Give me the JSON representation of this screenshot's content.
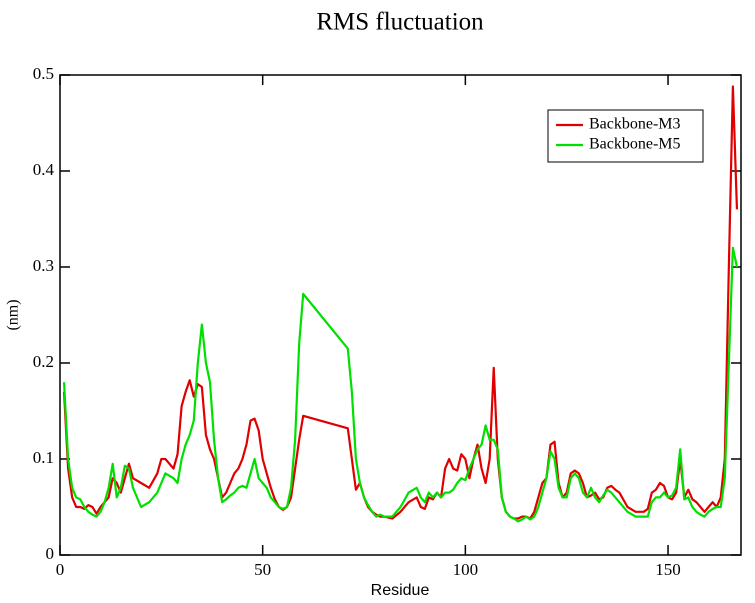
{
  "chart_data": {
    "type": "line",
    "title": "RMS fluctuation",
    "x_label": "Residue",
    "y_label": "(nm)",
    "x": [
      1,
      2,
      3,
      4,
      5,
      6,
      7,
      8,
      9,
      10,
      11,
      12,
      13,
      14,
      15,
      16,
      17,
      18,
      20,
      22,
      24,
      25,
      26,
      28,
      29,
      30,
      31,
      32,
      33,
      34,
      35,
      36,
      37,
      38,
      39,
      40,
      41,
      42,
      43,
      44,
      45,
      46,
      47,
      48,
      49,
      50,
      51,
      52,
      53,
      54,
      55,
      56,
      57,
      58,
      59,
      60,
      71,
      72,
      73,
      74,
      75,
      76,
      77,
      78,
      79,
      80,
      82,
      84,
      86,
      88,
      89,
      90,
      91,
      92,
      93,
      94,
      95,
      96,
      97,
      98,
      99,
      100,
      101,
      102,
      103,
      104,
      105,
      106,
      107,
      108,
      109,
      110,
      111,
      112,
      113,
      114,
      115,
      116,
      117,
      118,
      119,
      120,
      121,
      122,
      123,
      124,
      125,
      126,
      127,
      128,
      129,
      130,
      131,
      132,
      133,
      134,
      135,
      136,
      137,
      138,
      140,
      142,
      144,
      145,
      146,
      147,
      148,
      149,
      150,
      151,
      152,
      153,
      154,
      155,
      156,
      157,
      158,
      159,
      160,
      161,
      162,
      163,
      164,
      165,
      166,
      167
    ],
    "series": [
      {
        "name": "Backbone-M3",
        "color": "#e00000",
        "values": [
          0.17,
          0.09,
          0.06,
          0.05,
          0.05,
          0.048,
          0.052,
          0.05,
          0.043,
          0.05,
          0.055,
          0.06,
          0.08,
          0.075,
          0.065,
          0.08,
          0.095,
          0.08,
          0.075,
          0.07,
          0.085,
          0.1,
          0.1,
          0.09,
          0.105,
          0.155,
          0.17,
          0.182,
          0.165,
          0.178,
          0.175,
          0.125,
          0.11,
          0.1,
          0.08,
          0.06,
          0.065,
          0.075,
          0.085,
          0.09,
          0.1,
          0.115,
          0.14,
          0.142,
          0.13,
          0.1,
          0.085,
          0.07,
          0.058,
          0.05,
          0.047,
          0.05,
          0.06,
          0.09,
          0.12,
          0.145,
          0.132,
          0.1,
          0.068,
          0.075,
          0.06,
          0.05,
          0.045,
          0.042,
          0.04,
          0.04,
          0.038,
          0.045,
          0.055,
          0.06,
          0.05,
          0.048,
          0.06,
          0.058,
          0.065,
          0.06,
          0.09,
          0.1,
          0.09,
          0.088,
          0.105,
          0.1,
          0.08,
          0.1,
          0.115,
          0.09,
          0.075,
          0.1,
          0.195,
          0.1,
          0.06,
          0.045,
          0.04,
          0.038,
          0.038,
          0.04,
          0.04,
          0.038,
          0.045,
          0.06,
          0.075,
          0.08,
          0.115,
          0.118,
          0.075,
          0.06,
          0.065,
          0.085,
          0.088,
          0.085,
          0.075,
          0.06,
          0.062,
          0.065,
          0.058,
          0.06,
          0.07,
          0.072,
          0.068,
          0.065,
          0.05,
          0.045,
          0.045,
          0.048,
          0.065,
          0.068,
          0.075,
          0.072,
          0.06,
          0.058,
          0.065,
          0.1,
          0.06,
          0.068,
          0.058,
          0.055,
          0.05,
          0.045,
          0.05,
          0.055,
          0.05,
          0.06,
          0.1,
          0.3,
          0.488,
          0.36
        ]
      },
      {
        "name": "Backbone-M5",
        "color": "#00e000",
        "values": [
          0.18,
          0.1,
          0.07,
          0.06,
          0.058,
          0.05,
          0.045,
          0.042,
          0.04,
          0.045,
          0.055,
          0.07,
          0.095,
          0.06,
          0.07,
          0.093,
          0.09,
          0.07,
          0.05,
          0.055,
          0.065,
          0.075,
          0.085,
          0.08,
          0.075,
          0.1,
          0.115,
          0.125,
          0.14,
          0.2,
          0.24,
          0.2,
          0.18,
          0.12,
          0.08,
          0.055,
          0.058,
          0.062,
          0.065,
          0.07,
          0.072,
          0.07,
          0.085,
          0.1,
          0.08,
          0.075,
          0.07,
          0.06,
          0.055,
          0.05,
          0.048,
          0.05,
          0.07,
          0.12,
          0.22,
          0.272,
          0.215,
          0.17,
          0.1,
          0.075,
          0.06,
          0.052,
          0.045,
          0.04,
          0.042,
          0.04,
          0.04,
          0.05,
          0.065,
          0.07,
          0.06,
          0.055,
          0.065,
          0.06,
          0.065,
          0.06,
          0.065,
          0.065,
          0.068,
          0.075,
          0.08,
          0.078,
          0.09,
          0.1,
          0.11,
          0.115,
          0.135,
          0.12,
          0.12,
          0.11,
          0.06,
          0.045,
          0.04,
          0.038,
          0.035,
          0.037,
          0.04,
          0.037,
          0.04,
          0.05,
          0.065,
          0.08,
          0.108,
          0.1,
          0.07,
          0.06,
          0.06,
          0.08,
          0.085,
          0.08,
          0.065,
          0.06,
          0.07,
          0.06,
          0.055,
          0.062,
          0.068,
          0.065,
          0.06,
          0.055,
          0.045,
          0.04,
          0.04,
          0.04,
          0.055,
          0.06,
          0.06,
          0.065,
          0.06,
          0.062,
          0.07,
          0.11,
          0.058,
          0.06,
          0.05,
          0.045,
          0.042,
          0.04,
          0.045,
          0.048,
          0.05,
          0.05,
          0.08,
          0.2,
          0.32,
          0.3
        ]
      }
    ],
    "xlim": [
      0,
      168
    ],
    "ylim": [
      0,
      0.5
    ],
    "xticks": [
      0,
      50,
      100,
      150
    ],
    "yticks": [
      0,
      0.1,
      0.2,
      0.3,
      0.4,
      0.5
    ],
    "legend": "upper right"
  }
}
